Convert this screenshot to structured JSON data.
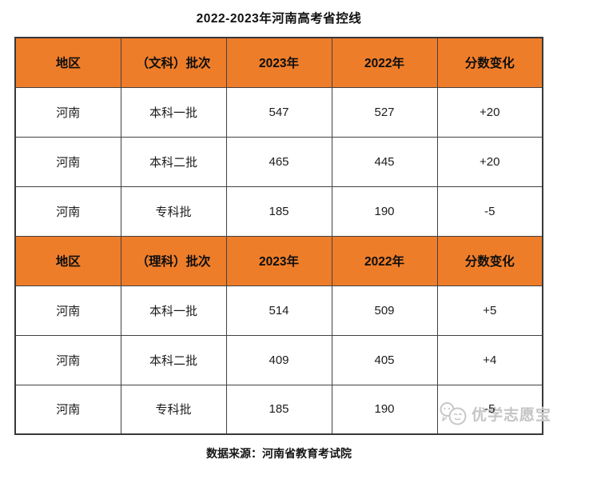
{
  "page": {
    "title": "2022-2023年河南高考省控线",
    "footer": "数据来源：河南省教育考试院"
  },
  "watermark": {
    "text": "优学志愿宝",
    "icon": "chat-bubbles-face-icon"
  },
  "colors": {
    "header_bg": "#EE7D2A",
    "border": "#424242",
    "text": "#1c1c1c",
    "watermark": "#c5c5c5"
  },
  "chart_data": {
    "type": "table",
    "title": "2022-2023年河南高考省控线",
    "source": "数据来源：河南省教育考试院",
    "sections": [
      {
        "headers": [
          "地区",
          "（文科）批次",
          "2023年",
          "2022年",
          "分数变化"
        ],
        "rows": [
          [
            "河南",
            "本科一批",
            "547",
            "527",
            "+20"
          ],
          [
            "河南",
            "本科二批",
            "465",
            "445",
            "+20"
          ],
          [
            "河南",
            "专科批",
            "185",
            "190",
            "-5"
          ]
        ]
      },
      {
        "headers": [
          "地区",
          "（理科）批次",
          "2023年",
          "2022年",
          "分数变化"
        ],
        "rows": [
          [
            "河南",
            "本科一批",
            "514",
            "509",
            "+5"
          ],
          [
            "河南",
            "本科二批",
            "409",
            "405",
            "+4"
          ],
          [
            "河南",
            "专科批",
            "185",
            "190",
            "-5"
          ]
        ]
      }
    ]
  }
}
